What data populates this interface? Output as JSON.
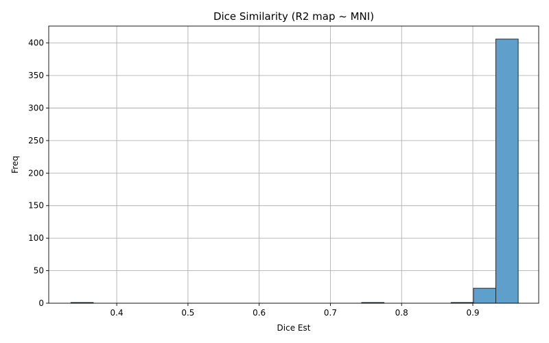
{
  "chart_data": {
    "type": "bar",
    "title": "Dice Similarity (R2 map ~ MNI)",
    "xlabel": "Dice Est",
    "ylabel": "Freq",
    "xlim": [
      0.3045,
      0.9925
    ],
    "ylim": [
      0,
      426
    ],
    "xticks": [
      0.4,
      0.5,
      0.6,
      0.7,
      0.8,
      0.9
    ],
    "xtick_labels": [
      "0.4",
      "0.5",
      "0.6",
      "0.7",
      "0.8",
      "0.9"
    ],
    "yticks": [
      0,
      50,
      100,
      150,
      200,
      250,
      300,
      350,
      400
    ],
    "ytick_labels": [
      "0",
      "50",
      "100",
      "150",
      "200",
      "250",
      "300",
      "350",
      "400"
    ],
    "grid": true,
    "bins": [
      {
        "x0": 0.3357,
        "x1": 0.3671,
        "value": 1
      },
      {
        "x0": 0.3671,
        "x1": 0.3985,
        "value": 0
      },
      {
        "x0": 0.3985,
        "x1": 0.4299,
        "value": 0
      },
      {
        "x0": 0.4299,
        "x1": 0.4613,
        "value": 0
      },
      {
        "x0": 0.4613,
        "x1": 0.4927,
        "value": 0
      },
      {
        "x0": 0.4927,
        "x1": 0.5241,
        "value": 0
      },
      {
        "x0": 0.5241,
        "x1": 0.5555,
        "value": 0
      },
      {
        "x0": 0.5555,
        "x1": 0.5869,
        "value": 0
      },
      {
        "x0": 0.5869,
        "x1": 0.6183,
        "value": 0
      },
      {
        "x0": 0.6183,
        "x1": 0.6497,
        "value": 0
      },
      {
        "x0": 0.6497,
        "x1": 0.6811,
        "value": 0
      },
      {
        "x0": 0.6811,
        "x1": 0.7125,
        "value": 0
      },
      {
        "x0": 0.7125,
        "x1": 0.7439,
        "value": 0
      },
      {
        "x0": 0.7439,
        "x1": 0.7753,
        "value": 1
      },
      {
        "x0": 0.7753,
        "x1": 0.8067,
        "value": 0
      },
      {
        "x0": 0.8067,
        "x1": 0.8381,
        "value": 0
      },
      {
        "x0": 0.8381,
        "x1": 0.8695,
        "value": 0
      },
      {
        "x0": 0.8695,
        "x1": 0.9009,
        "value": 1
      },
      {
        "x0": 0.9009,
        "x1": 0.9323,
        "value": 23
      },
      {
        "x0": 0.9323,
        "x1": 0.9637,
        "value": 406
      }
    ],
    "colors": {
      "bar_fill": "#5f9fcc",
      "bar_edge": "#1f2a33",
      "grid": "#b0b0b0"
    }
  }
}
